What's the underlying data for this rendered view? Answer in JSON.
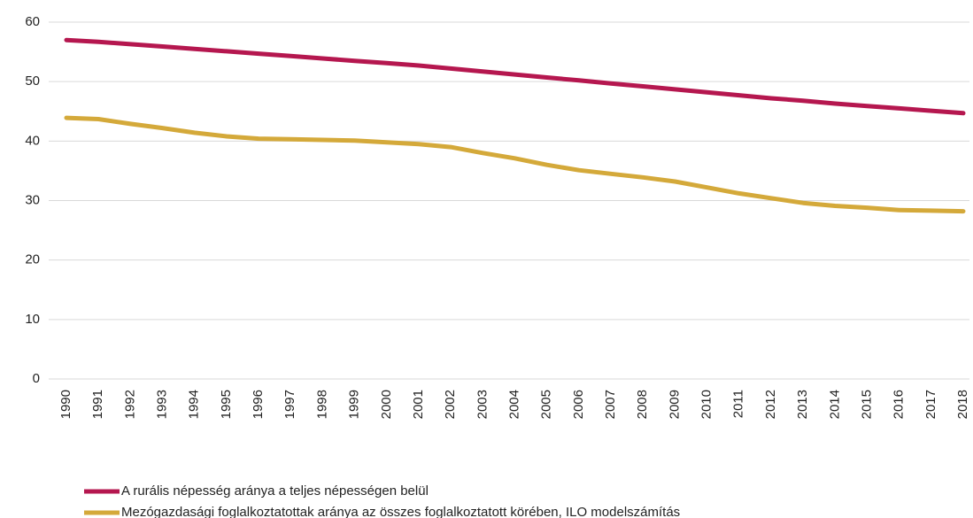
{
  "chart_data": {
    "type": "line",
    "categories": [
      "1990",
      "1991",
      "1992",
      "1993",
      "1994",
      "1995",
      "1996",
      "1997",
      "1998",
      "1999",
      "2000",
      "2001",
      "2002",
      "2003",
      "2004",
      "2005",
      "2006",
      "2007",
      "2008",
      "2009",
      "2010",
      "2011",
      "2012",
      "2013",
      "2014",
      "2015",
      "2016",
      "2017",
      "2018"
    ],
    "series": [
      {
        "name": "A rurális népesség aránya a teljes népességen belül",
        "color": "#b5174f",
        "values": [
          57.0,
          56.7,
          56.3,
          55.9,
          55.5,
          55.1,
          54.7,
          54.3,
          53.9,
          53.5,
          53.1,
          52.7,
          52.2,
          51.7,
          51.2,
          50.7,
          50.2,
          49.7,
          49.2,
          48.7,
          48.2,
          47.7,
          47.2,
          46.8,
          46.3,
          45.9,
          45.5,
          45.1,
          44.7
        ]
      },
      {
        "name": "Mezógazdasági foglalkoztatottak aránya az összes foglalkoztatott körében, ILO modelszámítás",
        "color": "#d4a93a",
        "values": [
          43.9,
          43.7,
          42.9,
          42.2,
          41.4,
          40.8,
          40.4,
          40.3,
          40.2,
          40.1,
          39.8,
          39.5,
          39.0,
          38.0,
          37.1,
          36.0,
          35.1,
          34.5,
          33.9,
          33.2,
          32.2,
          31.2,
          30.4,
          29.6,
          29.1,
          28.8,
          28.4,
          28.3,
          28.2
        ]
      }
    ],
    "ylim": [
      0,
      60
    ],
    "yticks": [
      0,
      10,
      20,
      30,
      40,
      50,
      60
    ],
    "grid": true,
    "legend": "bottom"
  }
}
